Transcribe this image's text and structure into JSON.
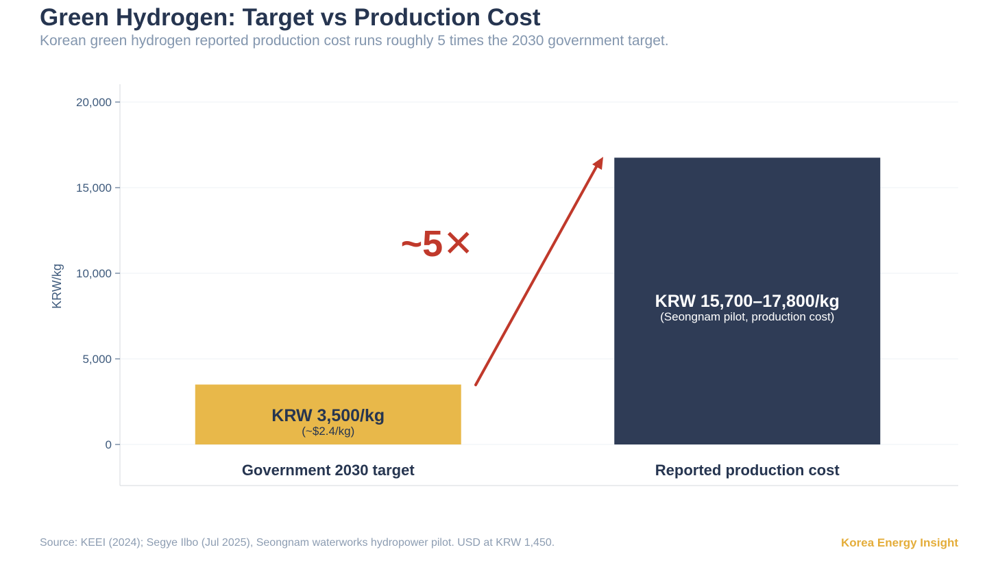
{
  "header": {
    "title": "Green Hydrogen: Target vs Production Cost",
    "subtitle": "Korean green hydrogen reported production cost runs roughly 5 times the 2030 government target."
  },
  "chart_data": {
    "type": "bar",
    "categories": [
      "Government 2030 target",
      "Reported production cost"
    ],
    "values": [
      3500,
      16750
    ],
    "range": [
      null,
      [
        15700,
        17800
      ]
    ],
    "ylabel": "KRW/kg",
    "ylim": [
      0,
      20000
    ],
    "yticks": [
      0,
      5000,
      10000,
      15000,
      20000
    ],
    "ytick_labels": [
      "0",
      "5,000",
      "10,000",
      "15,000",
      "20,000"
    ],
    "grid": true,
    "bar_colors": [
      "#e8b84a",
      "#2f3c56"
    ],
    "bar_labels": [
      {
        "main": "KRW 3,500/kg",
        "sub": "(~$2.4/kg)"
      },
      {
        "main": "KRW 15,700–17,800/kg",
        "sub": "(Seongnam pilot, production cost)"
      }
    ],
    "annotation": {
      "text": "~5✕",
      "color": "#c0392b"
    }
  },
  "footer": {
    "source": "Source: KEEI (2024); Segye Ilbo (Jul 2025), Seongnam waterworks hydropower pilot. USD at KRW 1,450.",
    "brand": "Korea Energy Insight"
  }
}
